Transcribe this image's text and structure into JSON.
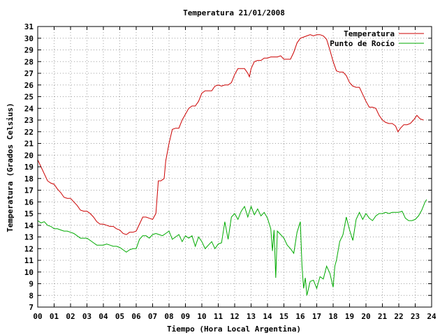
{
  "chart_data": {
    "type": "line",
    "title": "Temperatura 21/01/2008",
    "xlabel": "Tiempo (Hora Local Argentina)",
    "ylabel": "Temperatura (Grados Celsius)",
    "xlim": [
      0,
      24
    ],
    "ylim": [
      7,
      31
    ],
    "x_ticks": [
      "00",
      "01",
      "02",
      "03",
      "04",
      "05",
      "06",
      "07",
      "08",
      "09",
      "10",
      "11",
      "12",
      "13",
      "14",
      "15",
      "16",
      "17",
      "18",
      "19",
      "20",
      "21",
      "22",
      "23",
      "24"
    ],
    "y_ticks": [
      7,
      8,
      9,
      10,
      11,
      12,
      13,
      14,
      15,
      16,
      17,
      18,
      19,
      20,
      21,
      22,
      23,
      24,
      25,
      26,
      27,
      28,
      29,
      30,
      31
    ],
    "grid": true,
    "legend_position": "top-right",
    "series": [
      {
        "name": "Temperatura",
        "color": "#cc0000",
        "points": [
          [
            0.0,
            19.6
          ],
          [
            0.2,
            19.0
          ],
          [
            0.4,
            18.4
          ],
          [
            0.6,
            17.8
          ],
          [
            0.8,
            17.6
          ],
          [
            1.0,
            17.5
          ],
          [
            1.2,
            17.1
          ],
          [
            1.4,
            16.8
          ],
          [
            1.6,
            16.4
          ],
          [
            1.8,
            16.3
          ],
          [
            2.0,
            16.3
          ],
          [
            2.2,
            16.0
          ],
          [
            2.4,
            15.7
          ],
          [
            2.6,
            15.3
          ],
          [
            2.8,
            15.2
          ],
          [
            3.0,
            15.2
          ],
          [
            3.2,
            15.0
          ],
          [
            3.4,
            14.7
          ],
          [
            3.6,
            14.3
          ],
          [
            3.8,
            14.1
          ],
          [
            4.0,
            14.1
          ],
          [
            4.2,
            14.0
          ],
          [
            4.4,
            13.9
          ],
          [
            4.6,
            13.9
          ],
          [
            4.8,
            13.7
          ],
          [
            5.0,
            13.6
          ],
          [
            5.2,
            13.3
          ],
          [
            5.4,
            13.2
          ],
          [
            5.6,
            13.4
          ],
          [
            5.8,
            13.4
          ],
          [
            6.0,
            13.5
          ],
          [
            6.2,
            14.1
          ],
          [
            6.4,
            14.7
          ],
          [
            6.6,
            14.7
          ],
          [
            6.8,
            14.6
          ],
          [
            7.0,
            14.5
          ],
          [
            7.2,
            15.0
          ],
          [
            7.35,
            17.8
          ],
          [
            7.5,
            17.8
          ],
          [
            7.7,
            18.0
          ],
          [
            7.8,
            19.5
          ],
          [
            8.0,
            21.0
          ],
          [
            8.2,
            22.2
          ],
          [
            8.4,
            22.3
          ],
          [
            8.6,
            22.3
          ],
          [
            8.8,
            23.0
          ],
          [
            9.0,
            23.5
          ],
          [
            9.2,
            24.0
          ],
          [
            9.4,
            24.2
          ],
          [
            9.6,
            24.2
          ],
          [
            9.8,
            24.6
          ],
          [
            10.0,
            25.3
          ],
          [
            10.2,
            25.5
          ],
          [
            10.4,
            25.5
          ],
          [
            10.6,
            25.5
          ],
          [
            10.8,
            25.9
          ],
          [
            11.0,
            26.0
          ],
          [
            11.2,
            25.9
          ],
          [
            11.4,
            26.0
          ],
          [
            11.6,
            26.0
          ],
          [
            11.8,
            26.2
          ],
          [
            12.0,
            26.9
          ],
          [
            12.2,
            27.4
          ],
          [
            12.4,
            27.4
          ],
          [
            12.6,
            27.4
          ],
          [
            12.8,
            27.0
          ],
          [
            12.9,
            26.7
          ],
          [
            13.0,
            27.4
          ],
          [
            13.2,
            28.0
          ],
          [
            13.4,
            28.1
          ],
          [
            13.6,
            28.1
          ],
          [
            13.8,
            28.3
          ],
          [
            14.0,
            28.3
          ],
          [
            14.2,
            28.4
          ],
          [
            14.4,
            28.4
          ],
          [
            14.6,
            28.4
          ],
          [
            14.8,
            28.5
          ],
          [
            15.0,
            28.2
          ],
          [
            15.2,
            28.2
          ],
          [
            15.4,
            28.2
          ],
          [
            15.6,
            28.8
          ],
          [
            15.8,
            29.6
          ],
          [
            16.0,
            30.0
          ],
          [
            16.2,
            30.1
          ],
          [
            16.4,
            30.2
          ],
          [
            16.6,
            30.3
          ],
          [
            16.8,
            30.2
          ],
          [
            17.0,
            30.3
          ],
          [
            17.2,
            30.3
          ],
          [
            17.4,
            30.2
          ],
          [
            17.6,
            29.9
          ],
          [
            17.8,
            29.0
          ],
          [
            18.0,
            28.0
          ],
          [
            18.2,
            27.2
          ],
          [
            18.4,
            27.1
          ],
          [
            18.6,
            27.1
          ],
          [
            18.8,
            26.8
          ],
          [
            19.0,
            26.2
          ],
          [
            19.2,
            25.9
          ],
          [
            19.4,
            25.8
          ],
          [
            19.6,
            25.8
          ],
          [
            19.8,
            25.2
          ],
          [
            20.0,
            24.6
          ],
          [
            20.2,
            24.1
          ],
          [
            20.4,
            24.1
          ],
          [
            20.6,
            24.0
          ],
          [
            20.8,
            23.4
          ],
          [
            21.0,
            23.0
          ],
          [
            21.2,
            22.8
          ],
          [
            21.4,
            22.7
          ],
          [
            21.6,
            22.7
          ],
          [
            21.8,
            22.5
          ],
          [
            21.95,
            22.0
          ],
          [
            22.1,
            22.3
          ],
          [
            22.3,
            22.6
          ],
          [
            22.5,
            22.6
          ],
          [
            22.7,
            22.7
          ],
          [
            22.9,
            23.0
          ],
          [
            23.1,
            23.4
          ],
          [
            23.3,
            23.1
          ],
          [
            23.5,
            23.0
          ]
        ]
      },
      {
        "name": "Punto de Rocío",
        "color": "#00aa00",
        "points": [
          [
            0.0,
            14.4
          ],
          [
            0.2,
            14.2
          ],
          [
            0.4,
            14.3
          ],
          [
            0.6,
            14.0
          ],
          [
            0.8,
            13.9
          ],
          [
            1.0,
            13.7
          ],
          [
            1.2,
            13.7
          ],
          [
            1.4,
            13.6
          ],
          [
            1.6,
            13.5
          ],
          [
            1.8,
            13.5
          ],
          [
            2.0,
            13.4
          ],
          [
            2.2,
            13.3
          ],
          [
            2.4,
            13.1
          ],
          [
            2.6,
            12.9
          ],
          [
            2.8,
            12.9
          ],
          [
            3.0,
            12.9
          ],
          [
            3.2,
            12.7
          ],
          [
            3.4,
            12.5
          ],
          [
            3.6,
            12.3
          ],
          [
            3.8,
            12.3
          ],
          [
            4.0,
            12.3
          ],
          [
            4.2,
            12.4
          ],
          [
            4.4,
            12.3
          ],
          [
            4.6,
            12.2
          ],
          [
            4.8,
            12.2
          ],
          [
            5.0,
            12.1
          ],
          [
            5.2,
            11.9
          ],
          [
            5.4,
            11.7
          ],
          [
            5.6,
            11.9
          ],
          [
            5.8,
            12.0
          ],
          [
            6.0,
            12.0
          ],
          [
            6.2,
            12.8
          ],
          [
            6.4,
            13.1
          ],
          [
            6.6,
            13.1
          ],
          [
            6.8,
            12.9
          ],
          [
            7.0,
            13.2
          ],
          [
            7.2,
            13.3
          ],
          [
            7.4,
            13.2
          ],
          [
            7.6,
            13.1
          ],
          [
            7.8,
            13.3
          ],
          [
            8.0,
            13.5
          ],
          [
            8.2,
            12.8
          ],
          [
            8.4,
            13.0
          ],
          [
            8.6,
            13.2
          ],
          [
            8.8,
            12.6
          ],
          [
            9.0,
            13.1
          ],
          [
            9.2,
            12.9
          ],
          [
            9.4,
            13.1
          ],
          [
            9.6,
            12.2
          ],
          [
            9.8,
            13.0
          ],
          [
            10.0,
            12.6
          ],
          [
            10.2,
            12.0
          ],
          [
            10.4,
            12.3
          ],
          [
            10.6,
            12.6
          ],
          [
            10.8,
            12.0
          ],
          [
            11.0,
            12.4
          ],
          [
            11.2,
            12.5
          ],
          [
            11.4,
            14.3
          ],
          [
            11.6,
            12.8
          ],
          [
            11.8,
            14.7
          ],
          [
            12.0,
            15.0
          ],
          [
            12.2,
            14.5
          ],
          [
            12.4,
            15.2
          ],
          [
            12.6,
            15.6
          ],
          [
            12.8,
            14.7
          ],
          [
            13.0,
            15.6
          ],
          [
            13.2,
            14.9
          ],
          [
            13.4,
            15.4
          ],
          [
            13.6,
            14.8
          ],
          [
            13.8,
            15.1
          ],
          [
            14.0,
            14.6
          ],
          [
            14.2,
            13.7
          ],
          [
            14.3,
            11.8
          ],
          [
            14.4,
            13.6
          ],
          [
            14.5,
            9.5
          ],
          [
            14.6,
            13.5
          ],
          [
            14.8,
            13.2
          ],
          [
            15.0,
            12.9
          ],
          [
            15.2,
            12.3
          ],
          [
            15.4,
            12.0
          ],
          [
            15.6,
            11.6
          ],
          [
            15.8,
            13.4
          ],
          [
            16.0,
            14.3
          ],
          [
            16.1,
            10.5
          ],
          [
            16.2,
            8.6
          ],
          [
            16.3,
            9.5
          ],
          [
            16.4,
            8.0
          ],
          [
            16.6,
            9.2
          ],
          [
            16.8,
            9.3
          ],
          [
            17.0,
            8.6
          ],
          [
            17.2,
            9.6
          ],
          [
            17.4,
            9.4
          ],
          [
            17.6,
            10.5
          ],
          [
            17.8,
            9.9
          ],
          [
            18.0,
            8.7
          ],
          [
            18.1,
            10.5
          ],
          [
            18.2,
            11.0
          ],
          [
            18.4,
            12.6
          ],
          [
            18.6,
            13.2
          ],
          [
            18.8,
            14.7
          ],
          [
            19.0,
            13.6
          ],
          [
            19.2,
            12.7
          ],
          [
            19.4,
            14.5
          ],
          [
            19.6,
            15.1
          ],
          [
            19.8,
            14.5
          ],
          [
            20.0,
            15.0
          ],
          [
            20.2,
            14.6
          ],
          [
            20.4,
            14.4
          ],
          [
            20.6,
            14.8
          ],
          [
            20.8,
            15.0
          ],
          [
            21.0,
            15.0
          ],
          [
            21.2,
            15.1
          ],
          [
            21.4,
            15.0
          ],
          [
            21.6,
            15.1
          ],
          [
            21.8,
            15.1
          ],
          [
            22.0,
            15.1
          ],
          [
            22.2,
            15.2
          ],
          [
            22.4,
            14.6
          ],
          [
            22.6,
            14.4
          ],
          [
            22.8,
            14.4
          ],
          [
            23.0,
            14.5
          ],
          [
            23.2,
            14.8
          ],
          [
            23.4,
            15.3
          ],
          [
            23.6,
            16.0
          ],
          [
            23.7,
            16.2
          ]
        ]
      }
    ]
  }
}
